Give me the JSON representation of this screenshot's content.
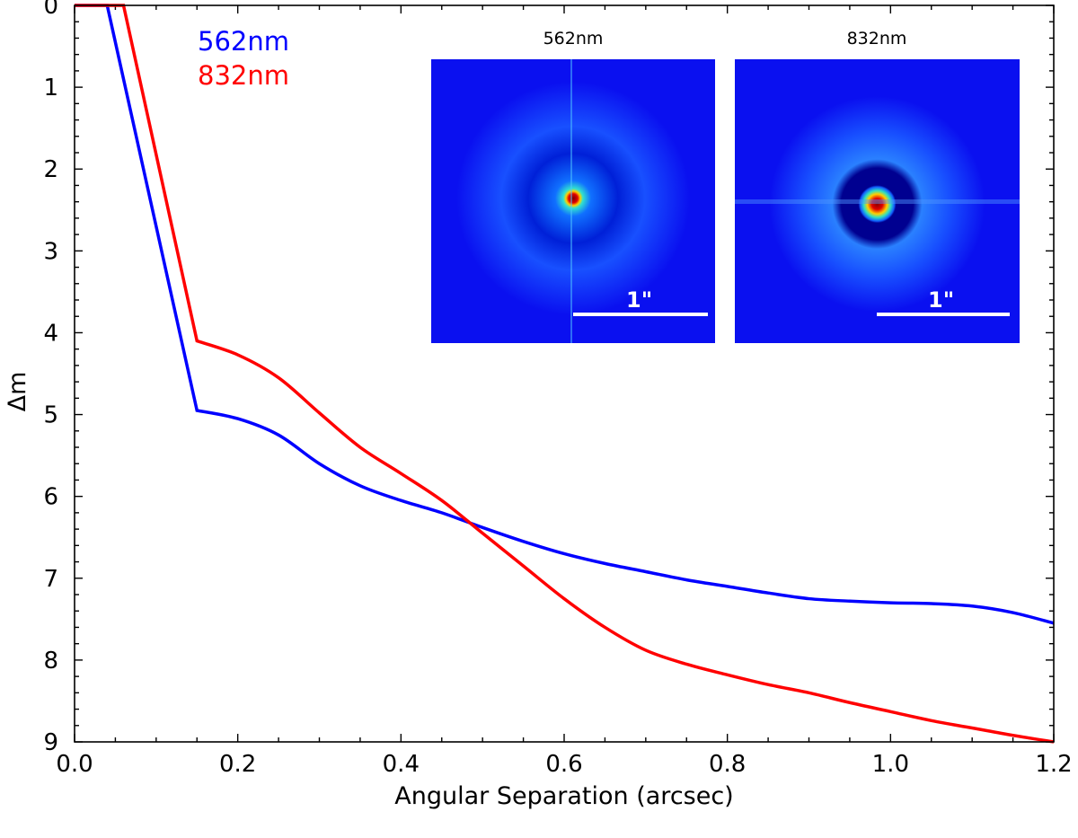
{
  "chart_data": {
    "type": "line",
    "title": "",
    "xlabel": "Angular Separation (arcsec)",
    "ylabel": "Δm",
    "xlim": [
      0,
      1.2
    ],
    "ylim": [
      0,
      9
    ],
    "y_inverted": true,
    "xticks": [
      "0.0",
      "0.2",
      "0.4",
      "0.6",
      "0.8",
      "1.0",
      "1.2"
    ],
    "yticks": [
      "0",
      "1",
      "2",
      "3",
      "4",
      "5",
      "6",
      "7",
      "8",
      "9"
    ],
    "legend_placement": "top-left",
    "series": [
      {
        "name": "562nm",
        "color": "#0000ff",
        "x": [
          0,
          0.04,
          0.15,
          0.2,
          0.25,
          0.3,
          0.35,
          0.4,
          0.45,
          0.5,
          0.55,
          0.6,
          0.65,
          0.7,
          0.75,
          0.8,
          0.85,
          0.9,
          0.95,
          1.0,
          1.05,
          1.1,
          1.15,
          1.2
        ],
        "y": [
          0,
          0,
          4.95,
          5.05,
          5.25,
          5.6,
          5.87,
          6.05,
          6.2,
          6.38,
          6.55,
          6.7,
          6.82,
          6.92,
          7.02,
          7.1,
          7.18,
          7.25,
          7.28,
          7.3,
          7.31,
          7.34,
          7.42,
          7.55
        ]
      },
      {
        "name": "832nm",
        "color": "#ff0000",
        "x": [
          0,
          0.06,
          0.15,
          0.2,
          0.25,
          0.3,
          0.35,
          0.4,
          0.45,
          0.5,
          0.55,
          0.6,
          0.65,
          0.7,
          0.75,
          0.8,
          0.85,
          0.9,
          0.95,
          1.0,
          1.05,
          1.1,
          1.15,
          1.2
        ],
        "y": [
          0,
          0,
          4.1,
          4.27,
          4.55,
          4.98,
          5.4,
          5.72,
          6.05,
          6.45,
          6.85,
          7.25,
          7.6,
          7.88,
          8.05,
          8.18,
          8.3,
          8.4,
          8.52,
          8.63,
          8.74,
          8.83,
          8.92,
          9.0
        ]
      }
    ],
    "insets": [
      {
        "title": "562nm",
        "scale_label": "1\""
      },
      {
        "title": "832nm",
        "scale_label": "1\""
      }
    ]
  }
}
